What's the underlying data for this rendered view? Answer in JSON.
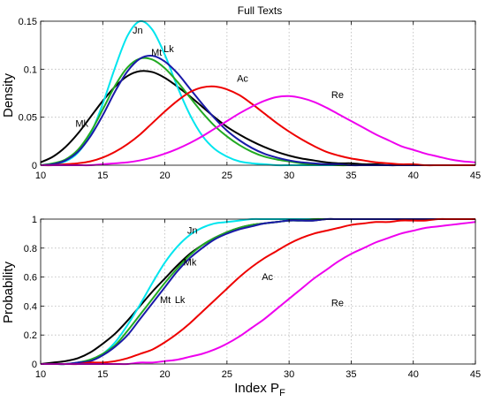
{
  "chart_data": [
    {
      "type": "line",
      "title": "Full Texts",
      "xlabel": "",
      "ylabel": "Density",
      "xlim": [
        10,
        45
      ],
      "ylim": [
        0,
        0.15
      ],
      "xticks": [
        "10",
        "15",
        "20",
        "25",
        "30",
        "35",
        "40",
        "45"
      ],
      "yticks": [
        "0",
        "0.05",
        "0.1",
        "0.15"
      ],
      "grid": true,
      "series": [
        {
          "name": "Mk",
          "color": "#000000",
          "x": [
            10,
            11,
            12,
            13,
            14,
            15,
            16,
            17,
            18,
            19,
            20,
            21,
            22,
            23,
            24,
            25,
            26,
            27,
            28,
            29,
            30,
            31,
            32,
            33,
            34,
            35,
            36,
            37,
            38,
            39,
            40,
            41,
            42,
            43,
            44,
            45
          ],
          "y": [
            0.003,
            0.009,
            0.019,
            0.033,
            0.05,
            0.067,
            0.082,
            0.093,
            0.098,
            0.097,
            0.091,
            0.082,
            0.072,
            0.061,
            0.05,
            0.04,
            0.032,
            0.025,
            0.019,
            0.014,
            0.01,
            0.007,
            0.005,
            0.003,
            0.002,
            0.002,
            0.001,
            0.001,
            0.0,
            0.0,
            0.0,
            0.0,
            0.0,
            0.0,
            0.0,
            0.0
          ]
        },
        {
          "name": "Jn",
          "color": "#00e5ee",
          "x": [
            10,
            11,
            12,
            13,
            14,
            15,
            16,
            17,
            18,
            19,
            20,
            21,
            22,
            23,
            24,
            25,
            26,
            27,
            28,
            29,
            30,
            31,
            32,
            33,
            34,
            35,
            36,
            37,
            38,
            39,
            40,
            41,
            42,
            43,
            44,
            45
          ],
          "y": [
            0.0,
            0.001,
            0.004,
            0.013,
            0.032,
            0.064,
            0.102,
            0.135,
            0.15,
            0.141,
            0.115,
            0.082,
            0.053,
            0.031,
            0.017,
            0.009,
            0.004,
            0.002,
            0.001,
            0.0,
            0.0,
            0.0,
            0.0,
            0.0,
            0.0,
            0.0,
            0.0,
            0.0,
            0.0,
            0.0,
            0.0,
            0.0,
            0.0,
            0.0,
            0.0,
            0.0
          ]
        },
        {
          "name": "Mt",
          "color": "#22aa22",
          "x": [
            10,
            11,
            12,
            13,
            14,
            15,
            16,
            17,
            18,
            19,
            20,
            21,
            22,
            23,
            24,
            25,
            26,
            27,
            28,
            29,
            30,
            31,
            32,
            33,
            34,
            35,
            36,
            37,
            38,
            39,
            40,
            41,
            42,
            43,
            44,
            45
          ],
          "y": [
            0.0,
            0.002,
            0.006,
            0.016,
            0.034,
            0.058,
            0.083,
            0.102,
            0.111,
            0.11,
            0.101,
            0.087,
            0.071,
            0.055,
            0.041,
            0.03,
            0.021,
            0.014,
            0.009,
            0.006,
            0.004,
            0.002,
            0.001,
            0.001,
            0.0,
            0.0,
            0.0,
            0.0,
            0.0,
            0.0,
            0.0,
            0.0,
            0.0,
            0.0,
            0.0,
            0.0
          ]
        },
        {
          "name": "Lk",
          "color": "#1a1aa8",
          "x": [
            10,
            11,
            12,
            13,
            14,
            15,
            16,
            17,
            18,
            19,
            20,
            21,
            22,
            23,
            24,
            25,
            26,
            27,
            28,
            29,
            30,
            31,
            32,
            33,
            34,
            35,
            36,
            37,
            38,
            39,
            40,
            41,
            42,
            43,
            44,
            45
          ],
          "y": [
            0.0,
            0.001,
            0.005,
            0.014,
            0.03,
            0.052,
            0.077,
            0.098,
            0.111,
            0.114,
            0.108,
            0.096,
            0.08,
            0.064,
            0.049,
            0.036,
            0.026,
            0.018,
            0.012,
            0.008,
            0.005,
            0.003,
            0.002,
            0.001,
            0.001,
            0.0,
            0.0,
            0.0,
            0.0,
            0.0,
            0.0,
            0.0,
            0.0,
            0.0,
            0.0,
            0.0
          ]
        },
        {
          "name": "Ac",
          "color": "#ee0000",
          "x": [
            10,
            11,
            12,
            13,
            14,
            15,
            16,
            17,
            18,
            19,
            20,
            21,
            22,
            23,
            24,
            25,
            26,
            27,
            28,
            29,
            30,
            31,
            32,
            33,
            34,
            35,
            36,
            37,
            38,
            39,
            40,
            41,
            42,
            43,
            44,
            45
          ],
          "y": [
            0.0,
            0.0,
            0.001,
            0.002,
            0.004,
            0.008,
            0.014,
            0.022,
            0.032,
            0.044,
            0.056,
            0.067,
            0.076,
            0.081,
            0.082,
            0.079,
            0.073,
            0.064,
            0.054,
            0.044,
            0.035,
            0.027,
            0.02,
            0.014,
            0.01,
            0.007,
            0.005,
            0.003,
            0.002,
            0.001,
            0.001,
            0.0,
            0.0,
            0.0,
            0.0,
            0.0
          ]
        },
        {
          "name": "Re",
          "color": "#ee00ee",
          "x": [
            10,
            11,
            12,
            13,
            14,
            15,
            16,
            17,
            18,
            19,
            20,
            21,
            22,
            23,
            24,
            25,
            26,
            27,
            28,
            29,
            30,
            31,
            32,
            33,
            34,
            35,
            36,
            37,
            38,
            39,
            40,
            41,
            42,
            43,
            44,
            45
          ],
          "y": [
            0.0,
            0.0,
            0.0,
            0.0,
            0.0,
            0.001,
            0.002,
            0.003,
            0.005,
            0.008,
            0.012,
            0.017,
            0.023,
            0.03,
            0.038,
            0.046,
            0.054,
            0.061,
            0.067,
            0.071,
            0.072,
            0.07,
            0.066,
            0.06,
            0.053,
            0.046,
            0.039,
            0.032,
            0.026,
            0.02,
            0.016,
            0.012,
            0.009,
            0.006,
            0.004,
            0.003
          ]
        }
      ]
    },
    {
      "type": "line",
      "title": "",
      "xlabel": "Index P",
      "xlabel_sub": "F",
      "ylabel": "Probability",
      "xlim": [
        10,
        45
      ],
      "ylim": [
        0,
        1
      ],
      "xticks": [
        "10",
        "15",
        "20",
        "25",
        "30",
        "35",
        "40",
        "45"
      ],
      "yticks": [
        "0",
        "0.2",
        "0.4",
        "0.6",
        "0.8",
        "1"
      ],
      "grid": true,
      "series": [
        {
          "name": "Mk",
          "color": "#000000",
          "x": [
            10,
            11,
            12,
            13,
            14,
            15,
            16,
            17,
            18,
            19,
            20,
            21,
            22,
            23,
            24,
            25,
            26,
            27,
            28,
            29,
            30,
            31,
            32,
            33,
            34,
            35,
            36,
            37,
            38,
            39,
            40,
            41,
            42,
            43,
            44,
            45
          ],
          "y": [
            0.0,
            0.01,
            0.02,
            0.04,
            0.08,
            0.14,
            0.21,
            0.3,
            0.4,
            0.5,
            0.59,
            0.68,
            0.76,
            0.82,
            0.87,
            0.91,
            0.94,
            0.96,
            0.97,
            0.98,
            0.99,
            0.99,
            0.99,
            1.0,
            1.0,
            1.0,
            1.0,
            1.0,
            1.0,
            1.0,
            1.0,
            1.0,
            1.0,
            1.0,
            1.0,
            1.0
          ]
        },
        {
          "name": "Jn",
          "color": "#00e5ee",
          "x": [
            10,
            11,
            12,
            13,
            14,
            15,
            16,
            17,
            18,
            19,
            20,
            21,
            22,
            23,
            24,
            25,
            26,
            27,
            28,
            29,
            30,
            31,
            32,
            33,
            34,
            35,
            36,
            37,
            38,
            39,
            40,
            41,
            42,
            43,
            44,
            45
          ],
          "y": [
            0.0,
            0.0,
            0.0,
            0.01,
            0.03,
            0.07,
            0.15,
            0.27,
            0.41,
            0.56,
            0.7,
            0.81,
            0.89,
            0.94,
            0.97,
            0.98,
            0.99,
            1.0,
            1.0,
            1.0,
            1.0,
            1.0,
            1.0,
            1.0,
            1.0,
            1.0,
            1.0,
            1.0,
            1.0,
            1.0,
            1.0,
            1.0,
            1.0,
            1.0,
            1.0,
            1.0
          ]
        },
        {
          "name": "Mt",
          "color": "#22aa22",
          "x": [
            10,
            11,
            12,
            13,
            14,
            15,
            16,
            17,
            18,
            19,
            20,
            21,
            22,
            23,
            24,
            25,
            26,
            27,
            28,
            29,
            30,
            31,
            32,
            33,
            34,
            35,
            36,
            37,
            38,
            39,
            40,
            41,
            42,
            43,
            44,
            45
          ],
          "y": [
            0.0,
            0.0,
            0.0,
            0.01,
            0.03,
            0.07,
            0.13,
            0.23,
            0.34,
            0.45,
            0.56,
            0.66,
            0.75,
            0.82,
            0.87,
            0.91,
            0.94,
            0.96,
            0.97,
            0.98,
            0.99,
            0.99,
            1.0,
            1.0,
            1.0,
            1.0,
            1.0,
            1.0,
            1.0,
            1.0,
            1.0,
            1.0,
            1.0,
            1.0,
            1.0,
            1.0
          ]
        },
        {
          "name": "Lk",
          "color": "#1a1aa8",
          "x": [
            10,
            11,
            12,
            13,
            14,
            15,
            16,
            17,
            18,
            19,
            20,
            21,
            22,
            23,
            24,
            25,
            26,
            27,
            28,
            29,
            30,
            31,
            32,
            33,
            34,
            35,
            36,
            37,
            38,
            39,
            40,
            41,
            42,
            43,
            44,
            45
          ],
          "y": [
            0.0,
            0.0,
            0.0,
            0.01,
            0.02,
            0.06,
            0.12,
            0.2,
            0.31,
            0.42,
            0.53,
            0.64,
            0.73,
            0.8,
            0.86,
            0.9,
            0.93,
            0.95,
            0.97,
            0.98,
            0.99,
            0.99,
            0.99,
            1.0,
            1.0,
            1.0,
            1.0,
            1.0,
            1.0,
            1.0,
            1.0,
            1.0,
            1.0,
            1.0,
            1.0,
            1.0
          ]
        },
        {
          "name": "Ac",
          "color": "#ee0000",
          "x": [
            10,
            11,
            12,
            13,
            14,
            15,
            16,
            17,
            18,
            19,
            20,
            21,
            22,
            23,
            24,
            25,
            26,
            27,
            28,
            29,
            30,
            31,
            32,
            33,
            34,
            35,
            36,
            37,
            38,
            39,
            40,
            41,
            42,
            43,
            44,
            45
          ],
          "y": [
            0.0,
            0.0,
            0.0,
            0.0,
            0.01,
            0.01,
            0.02,
            0.04,
            0.07,
            0.1,
            0.15,
            0.21,
            0.28,
            0.36,
            0.44,
            0.52,
            0.6,
            0.67,
            0.73,
            0.78,
            0.83,
            0.87,
            0.9,
            0.92,
            0.94,
            0.96,
            0.97,
            0.98,
            0.98,
            0.99,
            0.99,
            0.99,
            1.0,
            1.0,
            1.0,
            1.0
          ]
        },
        {
          "name": "Re",
          "color": "#ee00ee",
          "x": [
            10,
            11,
            12,
            13,
            14,
            15,
            16,
            17,
            18,
            19,
            20,
            21,
            22,
            23,
            24,
            25,
            26,
            27,
            28,
            29,
            30,
            31,
            32,
            33,
            34,
            35,
            36,
            37,
            38,
            39,
            40,
            41,
            42,
            43,
            44,
            45
          ],
          "y": [
            0.0,
            0.0,
            0.0,
            0.0,
            0.0,
            0.0,
            0.0,
            0.0,
            0.01,
            0.01,
            0.02,
            0.03,
            0.05,
            0.07,
            0.1,
            0.14,
            0.19,
            0.25,
            0.31,
            0.38,
            0.45,
            0.52,
            0.59,
            0.65,
            0.71,
            0.76,
            0.8,
            0.84,
            0.87,
            0.9,
            0.92,
            0.94,
            0.95,
            0.96,
            0.97,
            0.98
          ]
        }
      ]
    }
  ],
  "labels": {
    "top": [
      {
        "text": "Jn",
        "color": "#000000",
        "x": 17.4,
        "y": 0.137
      },
      {
        "text": "Mt",
        "color": "#000000",
        "x": 18.9,
        "y": 0.114
      },
      {
        "text": "Lk",
        "color": "#000000",
        "x": 19.9,
        "y": 0.118
      },
      {
        "text": "Mk",
        "color": "#000000",
        "x": 12.8,
        "y": 0.04
      },
      {
        "text": "Ac",
        "color": "#000000",
        "x": 25.8,
        "y": 0.087
      },
      {
        "text": "Re",
        "color": "#000000",
        "x": 33.4,
        "y": 0.07
      }
    ],
    "bottom": [
      {
        "text": "Jn",
        "color": "#000000",
        "x": 21.8,
        "y": 0.9
      },
      {
        "text": "Mk",
        "color": "#000000",
        "x": 21.5,
        "y": 0.68
      },
      {
        "text": "Mt",
        "color": "#000000",
        "x": 19.6,
        "y": 0.42
      },
      {
        "text": "Lk",
        "color": "#000000",
        "x": 20.8,
        "y": 0.42
      },
      {
        "text": "Ac",
        "color": "#000000",
        "x": 27.8,
        "y": 0.58
      },
      {
        "text": "Re",
        "color": "#000000",
        "x": 33.4,
        "y": 0.4
      }
    ]
  }
}
